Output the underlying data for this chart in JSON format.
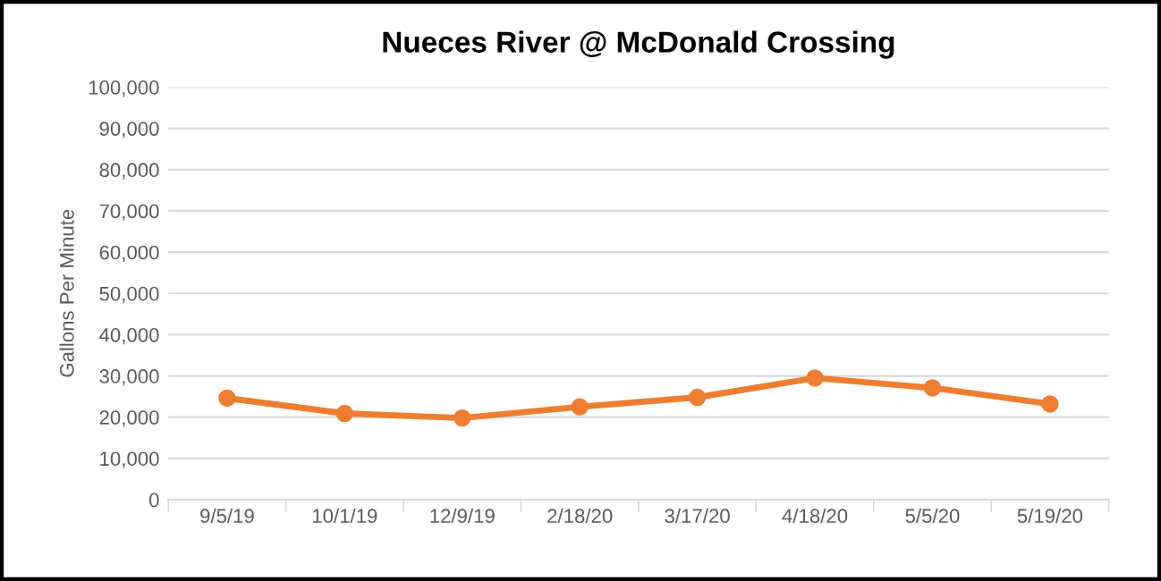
{
  "chart_data": {
    "type": "line",
    "title": "Nueces River @ McDonald Crossing",
    "ylabel": "Gallons Per Minute",
    "categories": [
      "9/5/19",
      "10/1/19",
      "12/9/19",
      "2/18/20",
      "3/17/20",
      "4/18/20",
      "5/5/20",
      "5/19/20"
    ],
    "series": [
      {
        "color": "#ed7d31",
        "values": [
          24600,
          20900,
          19800,
          22500,
          24800,
          29500,
          27100,
          23200
        ]
      }
    ],
    "ylim": [
      0,
      100000
    ],
    "yticks": [
      {
        "value": 0,
        "label": "0"
      },
      {
        "value": 10000,
        "label": "10,000"
      },
      {
        "value": 20000,
        "label": "20,000"
      },
      {
        "value": 30000,
        "label": "30,000"
      },
      {
        "value": 40000,
        "label": "40,000"
      },
      {
        "value": 50000,
        "label": "50,000"
      },
      {
        "value": 60000,
        "label": "60,000"
      },
      {
        "value": 70000,
        "label": "70,000"
      },
      {
        "value": 80000,
        "label": "80,000"
      },
      {
        "value": 90000,
        "label": "90,000"
      },
      {
        "value": 100000,
        "label": "100,000"
      }
    ],
    "grid": "y",
    "marker": "circle",
    "line_style": "solid"
  }
}
